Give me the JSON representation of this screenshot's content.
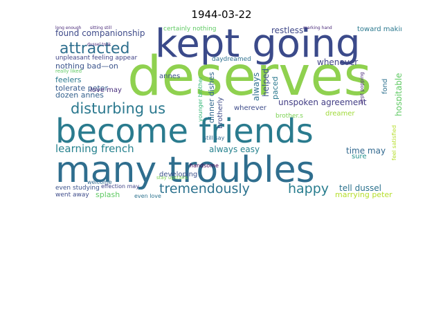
{
  "title": "1944-03-22",
  "words": {
    "deserves": "deserves",
    "become_friends": "become friends",
    "many_troubles": "many troubles",
    "kept_going": "kept going",
    "attracted": "attracted",
    "disturbing_us": "disturbing us",
    "tremendously": "tremendously",
    "happy": "happy",
    "learning_french": "learning french",
    "found_companionship": "found companionship",
    "unspoken_agreement": "unspoken agreement",
    "restless": "restless",
    "whenever": "whenever",
    "hospitable": "hospitable",
    "always_easy": "always easy",
    "time_may": "time may",
    "tell_dussel": "tell dussel",
    "marrying_peter": "marrying peter",
    "splash": "splash",
    "nothing_bad_on": "nothing bad—on",
    "tolerate_peter": "tolerate peter",
    "dozen_annes": "dozen annes",
    "feelers": "feelers",
    "love_may": "love may",
    "annes": "annes",
    "wherever": "wherever",
    "dreamer": "dreamer",
    "toward_making": "toward making",
    "certainly_nothing": "certainly nothing",
    "unpleasant_feeling": "unpleasant feeling appear",
    "daydreamed": "daydreamed",
    "developing": "developing",
    "handsome": "handsome",
    "even_studying": "even studying",
    "went_away": "went away",
    "effection_may": "effection may",
    "welcome": "welcome",
    "even_love": "even love",
    "always": "always",
    "helped": "helped",
    "paced": "paced",
    "dinner_dishes": "dinner dishes",
    "brotherly": "brotherly",
    "still_say": "still say",
    "sure": "sure",
    "fond": "fond",
    "feel_satisfied": "feel satisfied",
    "stay_upstairs": "stay upstairs",
    "younger_brother": "younger brother",
    "really_liked": "really liked",
    "long_enough": "long enough",
    "sitting_still": "sitting still",
    "marking_hand": "marking hand",
    "dussel_took": "dussel took",
    "kept_popping": "kept popping",
    "brother_s": "brother.s"
  }
}
